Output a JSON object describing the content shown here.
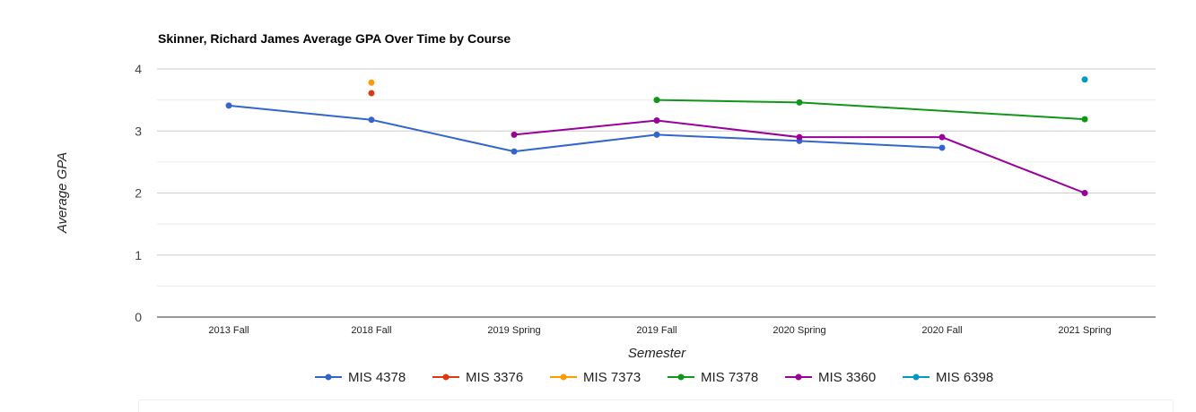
{
  "chart_data": {
    "type": "line",
    "title": "Skinner, Richard James Average GPA Over Time by Course",
    "xlabel": "Semester",
    "ylabel": "Average GPA",
    "categories": [
      "2013 Fall",
      "2018 Fall",
      "2019 Spring",
      "2019 Fall",
      "2020 Spring",
      "2020 Fall",
      "2021 Spring"
    ],
    "ylim": [
      0,
      4
    ],
    "yticks": [
      "0",
      "1",
      "2",
      "3",
      "4"
    ],
    "grid": true,
    "legend_position": "bottom",
    "series": [
      {
        "name": "MIS 4378",
        "color": "#3366cc",
        "values": [
          3.41,
          3.18,
          2.67,
          2.94,
          2.84,
          2.73,
          null
        ]
      },
      {
        "name": "MIS 3376",
        "color": "#dc3912",
        "values": [
          null,
          3.61,
          null,
          null,
          null,
          null,
          null
        ]
      },
      {
        "name": "MIS 7373",
        "color": "#ff9900",
        "values": [
          null,
          3.78,
          null,
          null,
          null,
          null,
          null
        ]
      },
      {
        "name": "MIS 7378",
        "color": "#109618",
        "values": [
          null,
          null,
          null,
          3.5,
          3.46,
          null,
          3.19
        ]
      },
      {
        "name": "MIS 3360",
        "color": "#990099",
        "values": [
          null,
          null,
          2.94,
          3.17,
          2.9,
          2.9,
          2.0
        ]
      },
      {
        "name": "MIS 6398",
        "color": "#0099c6",
        "values": [
          null,
          null,
          null,
          null,
          null,
          null,
          3.83
        ]
      }
    ]
  }
}
